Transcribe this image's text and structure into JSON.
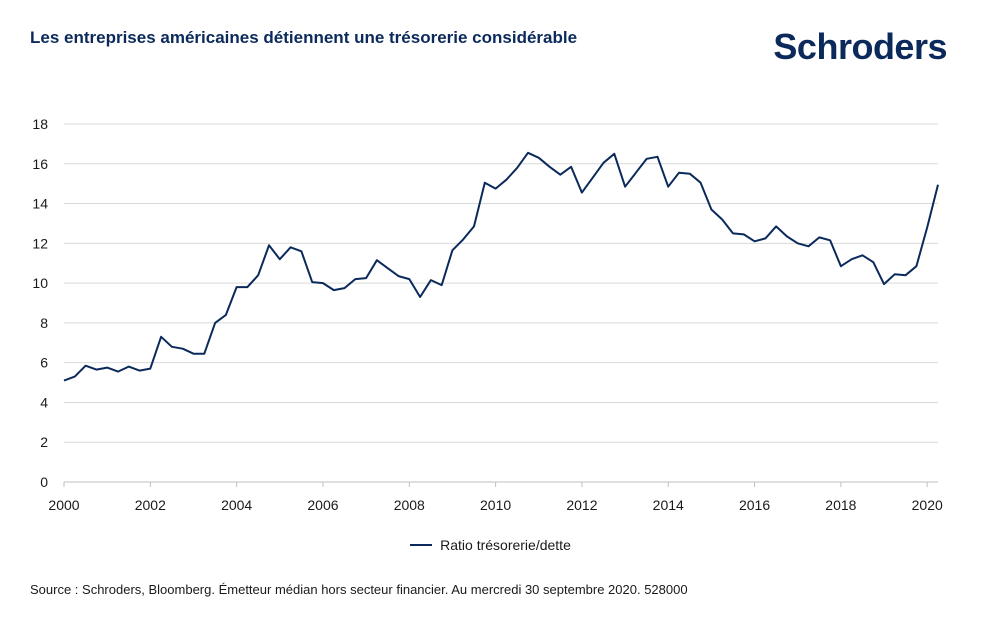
{
  "title": "Les entreprises américaines détiennent une trésorerie considérable",
  "logo_text": "Schroders",
  "source": "Source : Schroders, Bloomberg. Émetteur médian hors secteur financier. Au mercredi 30 septembre 2020. 528000",
  "colors": {
    "line": "#0b2a5b",
    "grid": "#d9d9d9",
    "brand": "#0b2a5b"
  },
  "chart_data": {
    "type": "line",
    "title": "",
    "xlabel": "",
    "ylabel": "",
    "xlim": [
      2000,
      2020.25
    ],
    "ylim": [
      0,
      18
    ],
    "grid": true,
    "legend_position": "bottom-center",
    "xticks": [
      "2000",
      "2002",
      "2004",
      "2006",
      "2008",
      "2010",
      "2012",
      "2014",
      "2016",
      "2018",
      "2020"
    ],
    "yticks": [
      "0",
      "2",
      "4",
      "6",
      "8",
      "10",
      "12",
      "14",
      "16",
      "18"
    ],
    "series": [
      {
        "name": "Ratio trésorerie/dette",
        "x": [
          2000,
          2000.25,
          2000.5,
          2000.75,
          2001,
          2001.25,
          2001.5,
          2001.75,
          2002,
          2002.25,
          2002.5,
          2002.75,
          2003,
          2003.25,
          2003.5,
          2003.75,
          2004,
          2004.25,
          2004.5,
          2004.75,
          2005,
          2005.25,
          2005.5,
          2005.75,
          2006,
          2006.25,
          2006.5,
          2006.75,
          2007,
          2007.25,
          2007.5,
          2007.75,
          2008,
          2008.25,
          2008.5,
          2008.75,
          2009,
          2009.25,
          2009.5,
          2009.75,
          2010,
          2010.25,
          2010.5,
          2010.75,
          2011,
          2011.25,
          2011.5,
          2011.75,
          2012,
          2012.25,
          2012.5,
          2012.75,
          2013,
          2013.25,
          2013.5,
          2013.75,
          2014,
          2014.25,
          2014.5,
          2014.75,
          2015,
          2015.25,
          2015.5,
          2015.75,
          2016,
          2016.25,
          2016.5,
          2016.75,
          2017,
          2017.25,
          2017.5,
          2017.75,
          2018,
          2018.25,
          2018.5,
          2018.75,
          2019,
          2019.25,
          2019.5,
          2019.75,
          2020,
          2020.25
        ],
        "values": [
          5.1,
          5.3,
          5.85,
          5.65,
          5.75,
          5.55,
          5.8,
          5.6,
          5.7,
          7.3,
          6.8,
          6.7,
          6.45,
          6.45,
          8.0,
          8.4,
          9.8,
          9.8,
          10.4,
          11.9,
          11.2,
          11.8,
          11.6,
          10.05,
          10.0,
          9.65,
          9.75,
          10.2,
          10.25,
          11.15,
          10.75,
          10.35,
          10.2,
          9.3,
          10.15,
          9.9,
          11.65,
          12.2,
          12.85,
          15.05,
          14.75,
          15.2,
          15.8,
          16.55,
          16.3,
          15.85,
          15.45,
          15.85,
          14.55,
          15.3,
          16.05,
          16.5,
          14.85,
          15.55,
          16.25,
          16.35,
          14.85,
          15.55,
          15.5,
          15.05,
          13.7,
          13.2,
          12.5,
          12.45,
          12.1,
          12.25,
          12.85,
          12.35,
          12.0,
          11.85,
          12.3,
          12.15,
          10.85,
          11.2,
          11.4,
          11.05,
          9.95,
          10.45,
          10.4,
          10.85,
          12.8,
          14.95
        ]
      }
    ]
  }
}
